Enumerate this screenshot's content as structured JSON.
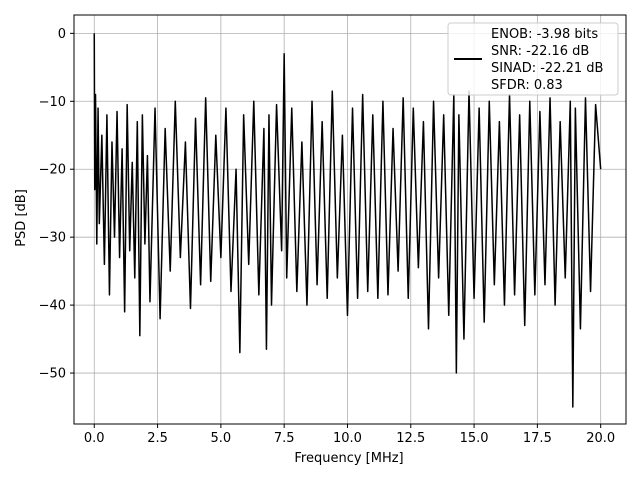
{
  "chart_data": {
    "type": "line",
    "title": "",
    "xlabel": "Frequency [MHz]",
    "ylabel": "PSD [dB]",
    "xlim": [
      -0.8,
      21.0
    ],
    "ylim": [
      -57.5,
      2.7
    ],
    "xticks": [
      0.0,
      2.5,
      5.0,
      7.5,
      10.0,
      12.5,
      15.0,
      17.5,
      20.0
    ],
    "xtick_labels": [
      "0.0",
      "2.5",
      "5.0",
      "7.5",
      "10.0",
      "12.5",
      "15.0",
      "17.5",
      "20.0"
    ],
    "yticks": [
      0,
      -10,
      -20,
      -30,
      -40,
      -50
    ],
    "ytick_labels": [
      "0",
      "−10",
      "−20",
      "−30",
      "−40",
      "−50"
    ],
    "grid": true,
    "legend_position": "top-right",
    "legend_lines": [
      "ENOB: -3.98 bits",
      "SNR: -22.16 dB",
      "SINAD: -22.21 dB",
      "SFDR: 0.83"
    ],
    "line_color": "#000000",
    "series": [
      {
        "x": [
          0.0,
          0.02,
          0.05,
          0.1,
          0.15,
          0.2,
          0.3,
          0.4,
          0.5,
          0.6,
          0.7,
          0.8,
          0.9,
          1.0,
          1.1,
          1.2,
          1.3,
          1.4,
          1.5,
          1.6,
          1.7,
          1.8,
          1.9,
          2.0,
          2.1,
          2.2,
          2.4,
          2.6,
          2.8,
          3.0,
          3.2,
          3.4,
          3.6,
          3.8,
          4.0,
          4.2,
          4.4,
          4.6,
          4.8,
          5.0,
          5.2,
          5.4,
          5.6,
          5.75,
          5.9,
          6.1,
          6.3,
          6.5,
          6.7,
          6.8,
          6.9,
          7.0,
          7.2,
          7.4,
          7.5,
          7.6,
          7.8,
          8.0,
          8.2,
          8.4,
          8.6,
          8.8,
          9.0,
          9.2,
          9.4,
          9.6,
          9.8,
          10.0,
          10.2,
          10.4,
          10.6,
          10.8,
          11.0,
          11.2,
          11.4,
          11.6,
          11.8,
          12.0,
          12.2,
          12.4,
          12.6,
          12.8,
          13.0,
          13.2,
          13.4,
          13.6,
          13.8,
          14.0,
          14.2,
          14.3,
          14.4,
          14.6,
          14.8,
          15.0,
          15.2,
          15.4,
          15.6,
          15.8,
          16.0,
          16.2,
          16.4,
          16.6,
          16.8,
          17.0,
          17.2,
          17.4,
          17.6,
          17.8,
          18.0,
          18.2,
          18.4,
          18.6,
          18.8,
          18.9,
          19.0,
          19.2,
          19.4,
          19.6,
          19.8,
          20.0
        ],
        "y": [
          0.0,
          -23.0,
          -9.0,
          -31.0,
          -11.0,
          -28.0,
          -15.0,
          -34.0,
          -12.0,
          -38.5,
          -16.0,
          -30.0,
          -11.5,
          -33.0,
          -17.0,
          -41.0,
          -10.5,
          -32.0,
          -19.0,
          -36.0,
          -13.0,
          -44.5,
          -12.0,
          -31.0,
          -18.0,
          -39.5,
          -11.0,
          -42.0,
          -14.0,
          -35.0,
          -10.0,
          -33.0,
          -16.0,
          -40.5,
          -12.5,
          -37.0,
          -9.5,
          -36.5,
          -15.0,
          -33.0,
          -11.0,
          -38.0,
          -20.0,
          -47.0,
          -12.0,
          -34.0,
          -10.0,
          -38.5,
          -14.0,
          -46.5,
          -12.0,
          -40.0,
          -10.5,
          -32.0,
          -3.0,
          -36.0,
          -11.0,
          -38.0,
          -16.0,
          -40.0,
          -10.0,
          -37.0,
          -13.0,
          -39.0,
          -8.5,
          -36.0,
          -15.0,
          -41.5,
          -11.0,
          -39.0,
          -9.0,
          -38.0,
          -12.0,
          -39.0,
          -10.0,
          -38.5,
          -14.0,
          -35.0,
          -9.5,
          -39.0,
          -11.0,
          -34.5,
          -13.0,
          -43.5,
          -10.0,
          -36.0,
          -12.0,
          -41.5,
          -9.0,
          -50.0,
          -12.0,
          -45.0,
          -8.5,
          -39.0,
          -11.0,
          -42.5,
          -10.0,
          -37.0,
          -13.0,
          -40.0,
          -9.0,
          -38.5,
          -12.0,
          -43.0,
          -10.0,
          -38.5,
          -11.5,
          -37.0,
          -9.5,
          -40.0,
          -13.0,
          -36.0,
          -10.0,
          -55.0,
          -11.0,
          -43.5,
          -9.5,
          -38.0,
          -10.5,
          -20.0
        ]
      }
    ]
  }
}
